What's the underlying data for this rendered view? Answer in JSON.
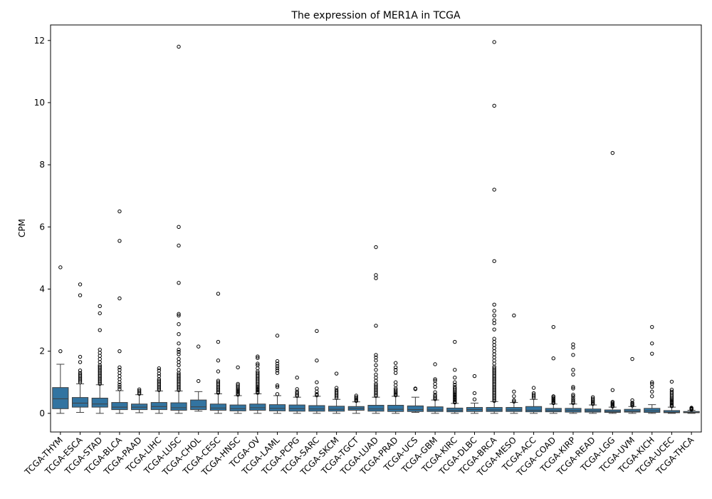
{
  "chart_data": {
    "type": "boxplot",
    "title": "The expression of MER1A in TCGA",
    "xlabel": "",
    "ylabel": "CPM",
    "ylim": [
      -0.6,
      12.5
    ],
    "yticks": [
      0,
      2,
      4,
      6,
      8,
      10,
      12
    ],
    "box_color": "#3274a1",
    "edge_color": "#3f3f3f",
    "grid": false,
    "categories": [
      "TCGA-THYM",
      "TCGA-ESCA",
      "TCGA-STAD",
      "TCGA-BLCA",
      "TCGA-PAAD",
      "TCGA-LIHC",
      "TCGA-LUSC",
      "TCGA-CHOL",
      "TCGA-CESC",
      "TCGA-HNSC",
      "TCGA-OV",
      "TCGA-LAML",
      "TCGA-PCPG",
      "TCGA-SARC",
      "TCGA-SKCM",
      "TCGA-TGCT",
      "TCGA-LUAD",
      "TCGA-PRAD",
      "TCGA-UCS",
      "TCGA-GBM",
      "TCGA-KIRC",
      "TCGA-DLBC",
      "TCGA-BRCA",
      "TCGA-MESO",
      "TCGA-ACC",
      "TCGA-COAD",
      "TCGA-KIRP",
      "TCGA-READ",
      "TCGA-LGG",
      "TCGA-UVM",
      "TCGA-KICH",
      "TCGA-UCEC",
      "TCGA-THCA"
    ],
    "boxes": [
      {
        "whislo": 0.0,
        "q1": 0.15,
        "med": 0.47,
        "q3": 0.83,
        "whishi": 1.58,
        "fliers": [
          2.0,
          4.7
        ]
      },
      {
        "whislo": 0.03,
        "q1": 0.2,
        "med": 0.33,
        "q3": 0.51,
        "whishi": 0.95,
        "fliers": [
          1.0,
          1.05,
          1.1,
          1.15,
          1.2,
          1.25,
          1.3,
          1.38,
          1.65,
          1.82,
          3.8,
          4.15
        ]
      },
      {
        "whislo": 0.0,
        "q1": 0.2,
        "med": 0.3,
        "q3": 0.49,
        "whishi": 0.92,
        "fliers": [
          0.95,
          1.0,
          1.05,
          1.1,
          1.15,
          1.2,
          1.25,
          1.3,
          1.35,
          1.4,
          1.45,
          1.5,
          1.55,
          1.65,
          1.75,
          1.85,
          1.95,
          2.05,
          2.68,
          3.22,
          3.45
        ]
      },
      {
        "whislo": 0.0,
        "q1": 0.12,
        "med": 0.2,
        "q3": 0.35,
        "whishi": 0.73,
        "fliers": [
          0.78,
          0.85,
          0.92,
          1.0,
          1.1,
          1.2,
          1.3,
          1.4,
          1.48,
          2.0,
          3.7,
          5.55,
          6.5
        ]
      },
      {
        "whislo": 0.02,
        "q1": 0.12,
        "med": 0.2,
        "q3": 0.3,
        "whishi": 0.6,
        "fliers": [
          0.63,
          0.67,
          0.72,
          0.77
        ]
      },
      {
        "whislo": 0.0,
        "q1": 0.12,
        "med": 0.22,
        "q3": 0.35,
        "whishi": 0.72,
        "fliers": [
          0.75,
          0.8,
          0.85,
          0.9,
          0.95,
          1.0,
          1.05,
          1.1,
          1.2,
          1.28,
          1.38,
          1.45
        ]
      },
      {
        "whislo": 0.0,
        "q1": 0.1,
        "med": 0.18,
        "q3": 0.34,
        "whishi": 0.72,
        "fliers": [
          0.75,
          0.8,
          0.85,
          0.9,
          0.95,
          1.0,
          1.05,
          1.1,
          1.15,
          1.2,
          1.25,
          1.3,
          1.4,
          1.55,
          1.65,
          1.75,
          1.9,
          1.98,
          2.05,
          2.25,
          2.55,
          2.87,
          3.15,
          3.2,
          4.2,
          5.4,
          6.0,
          11.8
        ]
      },
      {
        "whislo": 0.07,
        "q1": 0.12,
        "med": 0.21,
        "q3": 0.43,
        "whishi": 0.7,
        "fliers": [
          1.04,
          2.15
        ]
      },
      {
        "whislo": 0.0,
        "q1": 0.1,
        "med": 0.17,
        "q3": 0.3,
        "whishi": 0.63,
        "fliers": [
          0.66,
          0.7,
          0.75,
          0.8,
          0.85,
          0.9,
          0.95,
          1.0,
          1.05,
          1.35,
          1.7,
          2.3,
          3.85
        ]
      },
      {
        "whislo": 0.0,
        "q1": 0.08,
        "med": 0.15,
        "q3": 0.27,
        "whishi": 0.57,
        "fliers": [
          0.6,
          0.64,
          0.68,
          0.72,
          0.76,
          0.8,
          0.85,
          0.9,
          0.95,
          1.48
        ]
      },
      {
        "whislo": 0.0,
        "q1": 0.1,
        "med": 0.18,
        "q3": 0.3,
        "whishi": 0.63,
        "fliers": [
          0.66,
          0.7,
          0.74,
          0.78,
          0.82,
          0.86,
          0.9,
          0.95,
          1.0,
          1.05,
          1.1,
          1.15,
          1.2,
          1.25,
          1.3,
          1.35,
          1.45,
          1.55,
          1.6,
          1.78,
          1.83
        ]
      },
      {
        "whislo": 0.0,
        "q1": 0.08,
        "med": 0.16,
        "q3": 0.28,
        "whishi": 0.57,
        "fliers": [
          0.62,
          0.85,
          0.9,
          1.3,
          1.38,
          1.45,
          1.52,
          1.6,
          1.68,
          2.5
        ]
      },
      {
        "whislo": 0.0,
        "q1": 0.07,
        "med": 0.15,
        "q3": 0.27,
        "whishi": 0.52,
        "fliers": [
          0.56,
          0.6,
          0.65,
          0.7,
          0.78,
          1.15
        ]
      },
      {
        "whislo": 0.0,
        "q1": 0.07,
        "med": 0.14,
        "q3": 0.25,
        "whishi": 0.55,
        "fliers": [
          0.58,
          0.62,
          0.7,
          0.8,
          1.0,
          1.7,
          2.65
        ]
      },
      {
        "whislo": 0.0,
        "q1": 0.07,
        "med": 0.13,
        "q3": 0.23,
        "whishi": 0.45,
        "fliers": [
          0.5,
          0.55,
          0.6,
          0.65,
          0.7,
          0.75,
          0.82,
          1.28
        ]
      },
      {
        "whislo": 0.0,
        "q1": 0.1,
        "med": 0.16,
        "q3": 0.22,
        "whishi": 0.37,
        "fliers": [
          0.4,
          0.44,
          0.48,
          0.52,
          0.57
        ]
      },
      {
        "whislo": 0.0,
        "q1": 0.07,
        "med": 0.14,
        "q3": 0.26,
        "whishi": 0.52,
        "fliers": [
          0.56,
          0.6,
          0.65,
          0.7,
          0.75,
          0.8,
          0.85,
          0.9,
          0.95,
          1.05,
          1.15,
          1.25,
          1.4,
          1.55,
          1.7,
          1.8,
          1.88,
          2.82,
          4.35,
          4.45,
          5.35
        ]
      },
      {
        "whislo": 0.0,
        "q1": 0.06,
        "med": 0.13,
        "q3": 0.26,
        "whishi": 0.55,
        "fliers": [
          0.58,
          0.62,
          0.66,
          0.7,
          0.75,
          0.8,
          0.9,
          1.0,
          1.3,
          1.4,
          1.48,
          1.62
        ]
      },
      {
        "whislo": 0.03,
        "q1": 0.06,
        "med": 0.12,
        "q3": 0.24,
        "whishi": 0.52,
        "fliers": [
          0.78,
          0.8
        ]
      },
      {
        "whislo": 0.0,
        "q1": 0.06,
        "med": 0.11,
        "q3": 0.21,
        "whishi": 0.43,
        "fliers": [
          0.46,
          0.5,
          0.55,
          0.6,
          0.68,
          0.85,
          0.95,
          1.05,
          1.1,
          1.58
        ]
      },
      {
        "whislo": 0.0,
        "q1": 0.05,
        "med": 0.1,
        "q3": 0.17,
        "whishi": 0.32,
        "fliers": [
          0.35,
          0.38,
          0.42,
          0.46,
          0.5,
          0.54,
          0.58,
          0.62,
          0.66,
          0.7,
          0.75,
          0.8,
          0.85,
          0.92,
          1.0,
          1.15,
          1.4,
          2.3
        ]
      },
      {
        "whislo": 0.0,
        "q1": 0.06,
        "med": 0.12,
        "q3": 0.19,
        "whishi": 0.33,
        "fliers": [
          0.45,
          0.65,
          1.2
        ]
      },
      {
        "whislo": 0.0,
        "q1": 0.06,
        "med": 0.11,
        "q3": 0.19,
        "whishi": 0.38,
        "fliers": [
          0.4,
          0.45,
          0.5,
          0.55,
          0.6,
          0.65,
          0.7,
          0.75,
          0.8,
          0.85,
          0.9,
          0.95,
          1.0,
          1.05,
          1.1,
          1.15,
          1.2,
          1.25,
          1.3,
          1.35,
          1.4,
          1.45,
          1.5,
          1.6,
          1.7,
          1.8,
          1.9,
          2.0,
          2.1,
          2.2,
          2.3,
          2.4,
          2.7,
          2.9,
          3.0,
          3.15,
          3.3,
          3.5,
          4.9,
          7.2,
          9.9,
          11.95
        ]
      },
      {
        "whislo": 0.0,
        "q1": 0.06,
        "med": 0.11,
        "q3": 0.19,
        "whishi": 0.35,
        "fliers": [
          0.38,
          0.42,
          0.55,
          0.7,
          3.15
        ]
      },
      {
        "whislo": 0.0,
        "q1": 0.05,
        "med": 0.1,
        "q3": 0.22,
        "whishi": 0.45,
        "fliers": [
          0.5,
          0.55,
          0.6,
          0.65,
          0.82
        ]
      },
      {
        "whislo": 0.0,
        "q1": 0.05,
        "med": 0.09,
        "q3": 0.16,
        "whishi": 0.3,
        "fliers": [
          0.33,
          0.36,
          0.4,
          0.44,
          0.48,
          0.52,
          0.55,
          1.77,
          2.78
        ]
      },
      {
        "whislo": 0.0,
        "q1": 0.04,
        "med": 0.09,
        "q3": 0.16,
        "whishi": 0.3,
        "fliers": [
          0.33,
          0.37,
          0.42,
          0.48,
          0.55,
          0.6,
          0.8,
          0.85,
          1.25,
          1.4,
          1.88,
          2.12,
          2.22
        ]
      },
      {
        "whislo": 0.0,
        "q1": 0.04,
        "med": 0.08,
        "q3": 0.14,
        "whishi": 0.27,
        "fliers": [
          0.3,
          0.34,
          0.38,
          0.42,
          0.47,
          0.52
        ]
      },
      {
        "whislo": 0.0,
        "q1": 0.03,
        "med": 0.06,
        "q3": 0.11,
        "whishi": 0.2,
        "fliers": [
          0.22,
          0.25,
          0.28,
          0.31,
          0.34,
          0.37,
          0.75,
          8.38
        ]
      },
      {
        "whislo": 0.0,
        "q1": 0.04,
        "med": 0.07,
        "q3": 0.13,
        "whishi": 0.22,
        "fliers": [
          0.25,
          0.28,
          0.31,
          0.34,
          0.42,
          1.75
        ]
      },
      {
        "whislo": 0.0,
        "q1": 0.03,
        "med": 0.08,
        "q3": 0.16,
        "whishi": 0.28,
        "fliers": [
          0.55,
          0.7,
          0.85,
          0.95,
          1.0,
          1.92,
          2.25,
          2.78
        ]
      },
      {
        "whislo": 0.0,
        "q1": 0.02,
        "med": 0.04,
        "q3": 0.09,
        "whishi": 0.2,
        "fliers": [
          0.23,
          0.26,
          0.3,
          0.34,
          0.38,
          0.42,
          0.46,
          0.5,
          0.55,
          0.6,
          0.65,
          0.7,
          0.76,
          1.02
        ]
      },
      {
        "whislo": 0.0,
        "q1": 0.02,
        "med": 0.03,
        "q3": 0.06,
        "whishi": 0.1,
        "fliers": [
          0.12,
          0.14,
          0.16,
          0.18
        ]
      }
    ]
  }
}
